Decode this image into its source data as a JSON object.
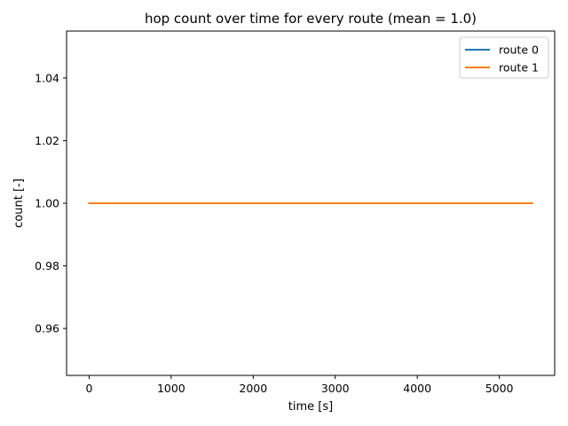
{
  "chart_data": {
    "type": "line",
    "title": "hop count over time for every route (mean = 1.0)",
    "xlabel": "time [s]",
    "ylabel": "count [-]",
    "xlim": [
      -275,
      5675
    ],
    "ylim": [
      0.945,
      1.055
    ],
    "x_ticks": [
      0,
      1000,
      2000,
      3000,
      4000,
      5000
    ],
    "x_tick_labels": [
      "0",
      "1000",
      "2000",
      "3000",
      "4000",
      "5000"
    ],
    "y_ticks": [
      0.96,
      0.98,
      1.0,
      1.02,
      1.04
    ],
    "y_tick_labels": [
      "0.96",
      "0.98",
      "1.00",
      "1.02",
      "1.04"
    ],
    "grid": false,
    "legend_position": "top-right",
    "series": [
      {
        "name": "route 0",
        "color": "#1f77b4",
        "x": [
          0,
          5400
        ],
        "values": [
          1.0,
          1.0
        ]
      },
      {
        "name": "route 1",
        "color": "#ff7f0e",
        "x": [
          0,
          5400
        ],
        "values": [
          1.0,
          1.0
        ]
      }
    ]
  }
}
